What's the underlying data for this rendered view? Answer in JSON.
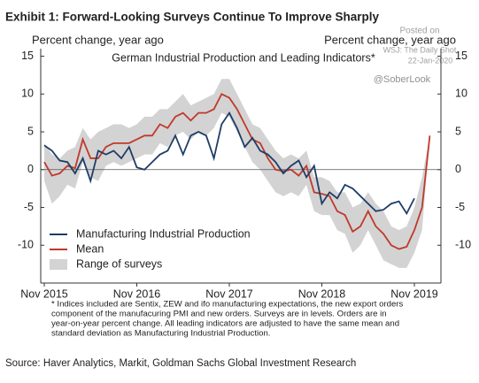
{
  "chart_data": {
    "type": "line",
    "title": "Exhibit 1: Forward-Looking Surveys Continue To Improve Sharply",
    "subtitle": "German Industrial Production and Leading Indicators*",
    "y_label": "Percent change, year ago",
    "y2_label": "Percent change, year ago",
    "watermark": [
      "Posted on",
      "WSJ: The Daily Shot",
      "22-Jan-2020",
      "@SoberLook"
    ],
    "categories": [
      "Nov 2015",
      null,
      null,
      null,
      null,
      null,
      null,
      null,
      null,
      null,
      null,
      null,
      "Nov 2016",
      null,
      null,
      null,
      null,
      null,
      null,
      null,
      null,
      null,
      null,
      null,
      "Nov 2017",
      null,
      null,
      null,
      null,
      null,
      null,
      null,
      null,
      null,
      null,
      null,
      "Nov 2018",
      null,
      null,
      null,
      null,
      null,
      null,
      null,
      null,
      null,
      null,
      null,
      "Nov 2019",
      null,
      null
    ],
    "series": [
      {
        "name": "Manufacturing Industrial Production",
        "color": "#1f3d66",
        "values": [
          3.2,
          2.5,
          1.2,
          1.0,
          -0.5,
          1.5,
          -1.5,
          2.5,
          2.0,
          2.5,
          1.5,
          3.0,
          0.3,
          0.0,
          1.0,
          2.0,
          2.5,
          4.5,
          2.0,
          4.5,
          5.0,
          4.5,
          1.5,
          6.0,
          7.5,
          5.5,
          3.0,
          4.2,
          2.5,
          2.0,
          1.0,
          -0.5,
          0.5,
          1.2,
          -1.0,
          0.5,
          -4.5,
          -3.0,
          -3.8,
          -2.0,
          -2.5,
          -3.5,
          -4.5,
          -5.5,
          -5.3,
          -4.5,
          -4.2,
          -5.8,
          -3.8,
          null,
          null
        ]
      },
      {
        "name": "Mean",
        "color": "#c0392b",
        "values": [
          1.0,
          -0.8,
          -0.5,
          0.5,
          0.2,
          4.0,
          1.5,
          1.5,
          3.0,
          3.5,
          3.5,
          3.5,
          4.0,
          4.5,
          4.5,
          6.0,
          5.5,
          7.0,
          7.5,
          6.5,
          7.5,
          7.5,
          8.0,
          10.0,
          9.5,
          8.0,
          6.0,
          4.0,
          3.5,
          1.5,
          0.0,
          -0.2,
          0.0,
          -0.8,
          0.5,
          -3.0,
          -3.2,
          -3.5,
          -5.5,
          -6.0,
          -8.2,
          -7.5,
          -5.5,
          -7.5,
          -8.5,
          -10.0,
          -10.5,
          -10.2,
          -8.0,
          -5.0,
          4.5
        ]
      }
    ],
    "band": {
      "name": "Range of surveys",
      "color": "#d3d3d3",
      "upper": [
        3.5,
        2,
        1.5,
        2.5,
        3,
        5.5,
        4,
        5,
        5.5,
        6,
        6,
        5.5,
        6,
        7,
        7,
        8,
        8,
        9,
        10,
        8.5,
        9,
        9.5,
        10,
        12,
        12,
        10,
        8,
        6,
        5.5,
        4,
        2.5,
        1.5,
        2,
        1.5,
        2.5,
        -1,
        -1,
        -1.5,
        -3,
        -3,
        -5,
        -4.5,
        -3,
        -4.5,
        -5.5,
        -7.5,
        -8,
        -7.5,
        -5,
        -1,
        4.5
      ],
      "lower": [
        -1.5,
        -4.5,
        -3.5,
        -2,
        -2.5,
        1,
        -1,
        -1.5,
        0.5,
        1,
        0.5,
        1,
        1.5,
        2,
        2,
        3.5,
        3,
        4.5,
        5,
        4,
        5,
        4.5,
        5.5,
        7.5,
        7,
        5,
        3,
        1,
        0,
        -1.5,
        -3,
        -3.5,
        -3,
        -3.5,
        -2,
        -5.5,
        -6,
        -6,
        -8,
        -8.5,
        -11,
        -10,
        -8,
        -10,
        -12,
        -12.5,
        -13,
        -13,
        -11,
        -8,
        4.5
      ]
    },
    "ylim": [
      -15,
      16
    ],
    "yticks": [
      15,
      10,
      5,
      0,
      -5,
      -10
    ],
    "y2lim": [
      -15,
      16
    ],
    "y2ticks": [
      15,
      10,
      5,
      0,
      -5,
      -10
    ],
    "zero_line": true,
    "legend": "lower left",
    "note": [
      "* Indices included are Sentix, ZEW and ifo manufacturing expectations, the new export orders",
      "component of the manufacuring PMI and new orders. Surveys are in levels. Orders are in",
      "year-on-year percent change. All leading indicators are adjusted to have the same mean and",
      "standard deviation as Manufacturing Industrial Production."
    ],
    "source": "Source: Haver Analytics, Markit, Goldman Sachs Global Investment Research"
  }
}
